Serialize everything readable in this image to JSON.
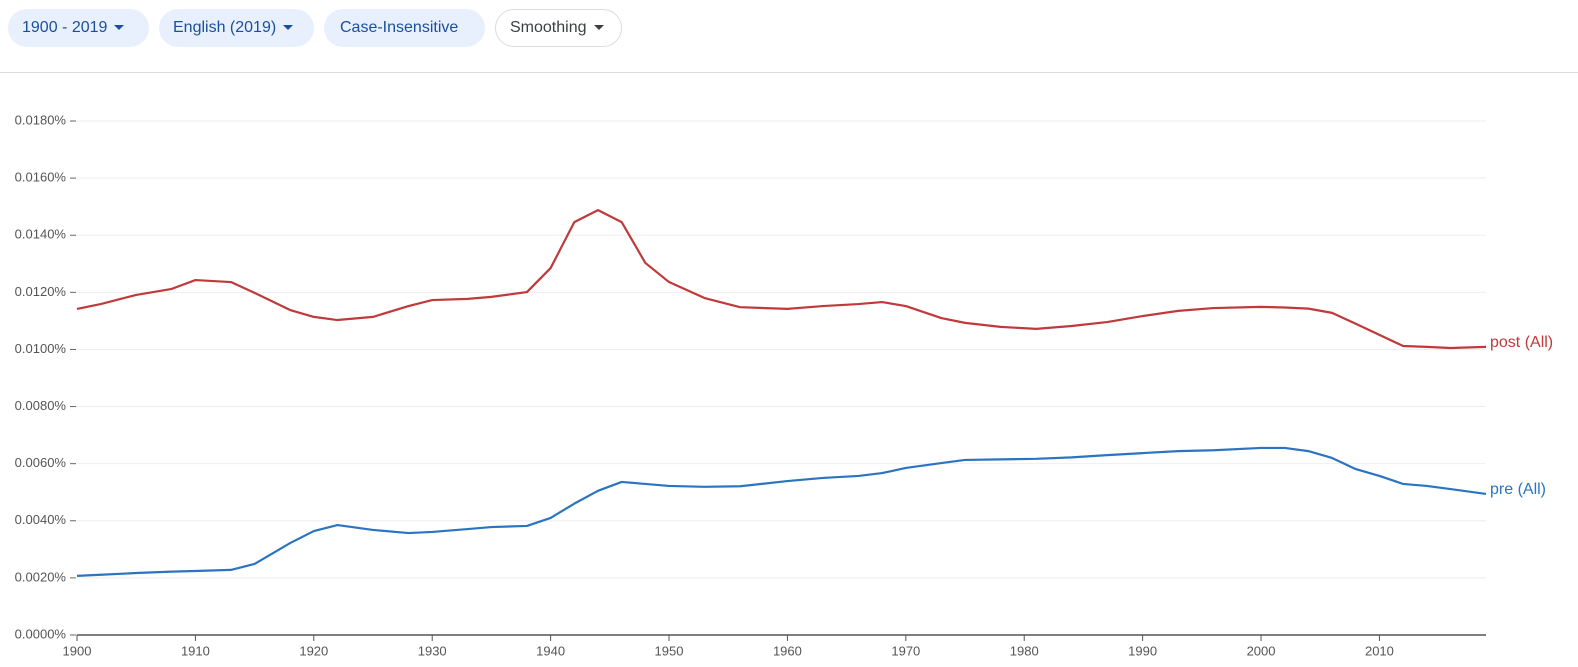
{
  "toolbar": {
    "buttons": [
      "1900 - 2019",
      "English (2019)",
      "Case-Insensitive",
      "Smoothing"
    ]
  },
  "chart_data": {
    "type": "line",
    "x": [
      1900,
      1902,
      1905,
      1908,
      1910,
      1913,
      1915,
      1918,
      1920,
      1922,
      1925,
      1928,
      1930,
      1933,
      1935,
      1938,
      1940,
      1942,
      1944,
      1946,
      1948,
      1950,
      1953,
      1956,
      1960,
      1963,
      1966,
      1968,
      1970,
      1973,
      1975,
      1978,
      1981,
      1984,
      1987,
      1990,
      1993,
      1996,
      2000,
      2002,
      2004,
      2006,
      2008,
      2010,
      2012,
      2014,
      2016,
      2019
    ],
    "series": [
      {
        "name": "post (All)",
        "color": "#c0393b",
        "values": [
          0.01142,
          0.01159,
          0.01191,
          0.01212,
          0.01243,
          0.01236,
          0.01198,
          0.01138,
          0.01114,
          0.01103,
          0.01114,
          0.01152,
          0.01173,
          0.01177,
          0.01184,
          0.01201,
          0.01285,
          0.01446,
          0.01488,
          0.01446,
          0.01303,
          0.01236,
          0.0118,
          0.01148,
          0.01142,
          0.01152,
          0.01159,
          0.01166,
          0.01152,
          0.0111,
          0.01093,
          0.01079,
          0.01072,
          0.01082,
          0.01096,
          0.01117,
          0.01135,
          0.01145,
          0.01149,
          0.01147,
          0.01143,
          0.01128,
          0.0109,
          0.01051,
          0.01012,
          0.01009,
          0.01005,
          0.01009
        ]
      },
      {
        "name": "pre (All)",
        "color": "#2b74c1",
        "values": [
          0.00207,
          0.00211,
          0.00217,
          0.00222,
          0.00224,
          0.00228,
          0.00249,
          0.00322,
          0.00364,
          0.00385,
          0.00368,
          0.00357,
          0.00361,
          0.00371,
          0.00378,
          0.00382,
          0.0041,
          0.0046,
          0.00505,
          0.00536,
          0.00529,
          0.00522,
          0.00519,
          0.00521,
          0.00539,
          0.0055,
          0.00557,
          0.00567,
          0.00585,
          0.00602,
          0.00613,
          0.00615,
          0.00617,
          0.00622,
          0.0063,
          0.00637,
          0.00644,
          0.00647,
          0.00655,
          0.00655,
          0.00644,
          0.0062,
          0.00581,
          0.00557,
          0.00529,
          0.00522,
          0.00511,
          0.00494
        ]
      }
    ],
    "xlim": [
      1900,
      2019
    ],
    "xticks": [
      1900,
      1910,
      1920,
      1930,
      1940,
      1950,
      1960,
      1970,
      1980,
      1990,
      2000,
      2010
    ],
    "ylim": [
      0,
      0.018
    ],
    "yticks": [
      {
        "value": 0,
        "label": "0.0000%"
      },
      {
        "value": 0.002,
        "label": "0.0020%"
      },
      {
        "value": 0.004,
        "label": "0.0040%"
      },
      {
        "value": 0.006,
        "label": "0.0060%"
      },
      {
        "value": 0.008,
        "label": "0.0080%"
      },
      {
        "value": 0.01,
        "label": "0.0100%"
      },
      {
        "value": 0.012,
        "label": "0.0120%"
      },
      {
        "value": 0.014,
        "label": "0.0140%"
      },
      {
        "value": 0.016,
        "label": "0.0160%"
      },
      {
        "value": 0.018,
        "label": "0.0180%"
      }
    ],
    "grid": true
  }
}
